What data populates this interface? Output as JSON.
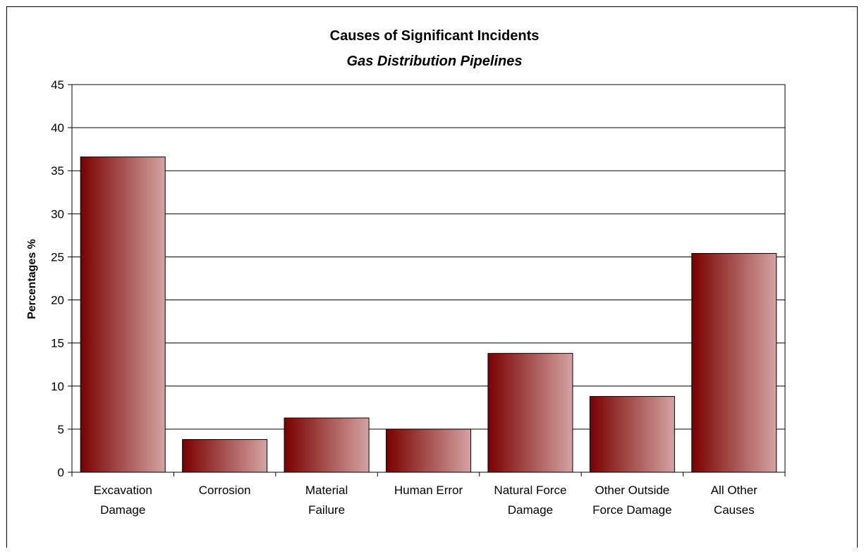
{
  "chart_data": {
    "type": "bar",
    "title": "Causes of Significant Incidents",
    "subtitle": "Gas Distribution Pipelines",
    "ylabel": "Percentages %",
    "xlabel": "",
    "ylim": [
      0,
      45
    ],
    "yticks": [
      0,
      5,
      10,
      15,
      20,
      25,
      30,
      35,
      40,
      45
    ],
    "grid": true,
    "categories": [
      [
        "Excavation",
        "Damage"
      ],
      [
        "Corrosion"
      ],
      [
        "Material",
        "Failure"
      ],
      [
        "Human Error"
      ],
      [
        "Natural Force",
        "Damage"
      ],
      [
        "Other Outside",
        "Force Damage"
      ],
      [
        "All Other",
        "Causes"
      ]
    ],
    "values": [
      36.6,
      3.8,
      6.3,
      5.0,
      13.8,
      8.8,
      25.4
    ],
    "bar_color_dark": "#7a0000",
    "bar_color_light": "#d4a3a3"
  }
}
